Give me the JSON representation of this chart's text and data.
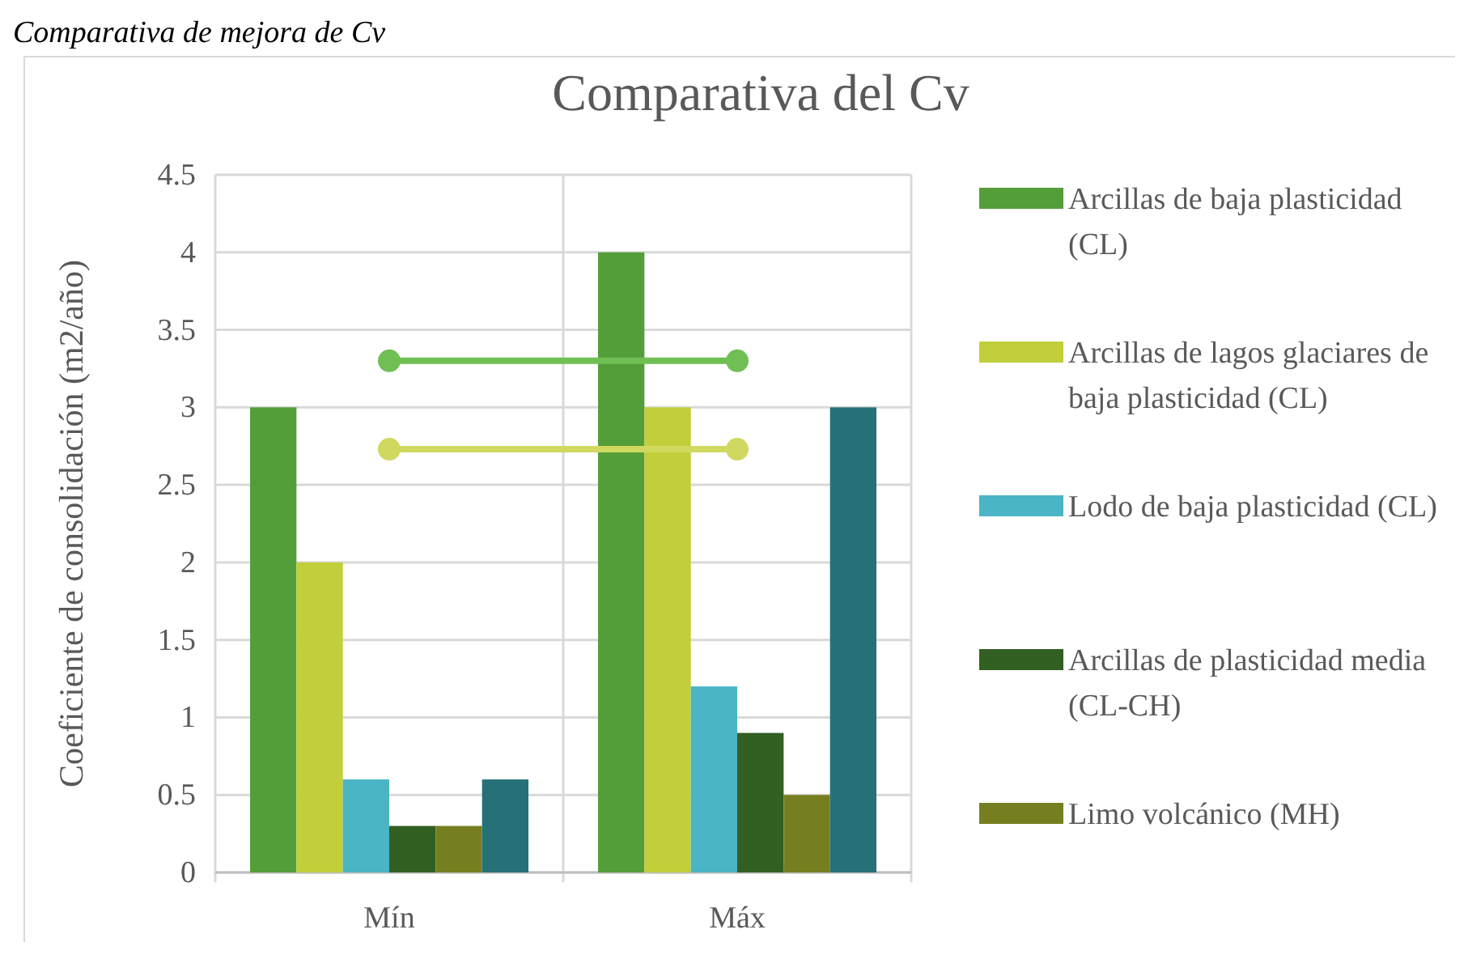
{
  "chart_data": {
    "type": "bar",
    "title": "Comparativa del Cv",
    "ylabel": "Coeficiente de consolidación (m2/año)",
    "annotations": [
      "Comparativa de mejora de Cv"
    ],
    "categories": [
      "Mín",
      "Máx"
    ],
    "series": [
      {
        "name": "Arcillas de baja plasticidad (CL)",
        "color": "#549e39",
        "values": [
          3,
          4
        ]
      },
      {
        "name": "Arcillas de lagos glaciares de baja plasticidad (CL)",
        "color": "#c0cf3a",
        "values": [
          2,
          3
        ]
      },
      {
        "name": "Lodo de baja plasticidad (CL)",
        "color": "#4ab5c4",
        "values": [
          0.6,
          1.2
        ]
      },
      {
        "name": "Arcillas de plasticidad media (CL-CH)",
        "color": "#325f22",
        "values": [
          0.3,
          0.9
        ]
      },
      {
        "name": "Limo volcánico (MH)",
        "color": "#767f20",
        "values": [
          0.3,
          0.5
        ]
      },
      {
        "color": "#267178",
        "values": [
          0.6,
          3
        ]
      },
      {
        "type": "line",
        "color": "#70bf54",
        "values": [
          3.3,
          3.3
        ]
      },
      {
        "type": "line",
        "color": "#d0d860",
        "values": [
          2.73,
          2.73
        ]
      }
    ],
    "marker": "circle",
    "ylim": [
      0,
      4.5
    ],
    "yticks": [
      0,
      0.5,
      1,
      1.5,
      2,
      2.5,
      3,
      3.5,
      4,
      4.5
    ],
    "grid": true,
    "legend": "right"
  }
}
